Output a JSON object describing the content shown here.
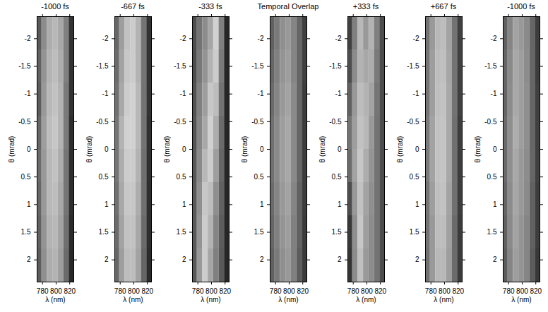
{
  "chart_data": [
    {
      "type": "heatmap",
      "title": "-1000 fs",
      "x_label": "λ (nm)",
      "y_label": "θ (mrad)",
      "xlim": [
        772,
        826
      ],
      "ylim": [
        -2.4,
        2.4
      ],
      "xticks": [
        780,
        800,
        820
      ],
      "yticks": [
        -2,
        -1.5,
        -1,
        -0.5,
        0,
        0.5,
        1,
        1.5,
        2
      ],
      "color_range": [
        0,
        1
      ],
      "x": [
        775,
        783,
        791,
        799,
        807,
        815,
        823
      ],
      "y": [
        -2.1,
        -1.5,
        -0.9,
        -0.3,
        0.3,
        0.9,
        1.5,
        2.1
      ],
      "values": [
        [
          0.35,
          0.55,
          0.68,
          0.72,
          0.66,
          0.5,
          0.2
        ],
        [
          0.38,
          0.58,
          0.7,
          0.74,
          0.68,
          0.5,
          0.2
        ],
        [
          0.36,
          0.6,
          0.72,
          0.76,
          0.7,
          0.48,
          0.2
        ],
        [
          0.4,
          0.62,
          0.74,
          0.78,
          0.7,
          0.48,
          0.18
        ],
        [
          0.42,
          0.6,
          0.72,
          0.76,
          0.68,
          0.46,
          0.18
        ],
        [
          0.4,
          0.6,
          0.72,
          0.74,
          0.66,
          0.46,
          0.18
        ],
        [
          0.38,
          0.58,
          0.7,
          0.72,
          0.64,
          0.44,
          0.17
        ],
        [
          0.36,
          0.56,
          0.68,
          0.7,
          0.62,
          0.42,
          0.16
        ]
      ]
    },
    {
      "type": "heatmap",
      "title": "-667 fs",
      "x_label": "λ (nm)",
      "y_label": "θ (mrad)",
      "xlim": [
        772,
        826
      ],
      "ylim": [
        -2.4,
        2.4
      ],
      "xticks": [
        780,
        800,
        820
      ],
      "yticks": [
        -2,
        -1.5,
        -1,
        -0.5,
        0,
        0.5,
        1,
        1.5,
        2
      ],
      "color_range": [
        0,
        1
      ],
      "x": [
        775,
        783,
        791,
        799,
        807,
        815,
        823
      ],
      "y": [
        -2.1,
        -1.5,
        -0.9,
        -0.3,
        0.3,
        0.9,
        1.5,
        2.1
      ],
      "values": [
        [
          0.4,
          0.62,
          0.76,
          0.8,
          0.7,
          0.46,
          0.2
        ],
        [
          0.42,
          0.64,
          0.78,
          0.8,
          0.7,
          0.46,
          0.2
        ],
        [
          0.44,
          0.66,
          0.8,
          0.82,
          0.72,
          0.45,
          0.2
        ],
        [
          0.46,
          0.7,
          0.82,
          0.82,
          0.72,
          0.45,
          0.19
        ],
        [
          0.46,
          0.68,
          0.8,
          0.8,
          0.7,
          0.44,
          0.19
        ],
        [
          0.44,
          0.66,
          0.78,
          0.78,
          0.68,
          0.44,
          0.18
        ],
        [
          0.42,
          0.64,
          0.76,
          0.76,
          0.66,
          0.42,
          0.18
        ],
        [
          0.4,
          0.62,
          0.74,
          0.74,
          0.64,
          0.4,
          0.17
        ]
      ]
    },
    {
      "type": "heatmap",
      "title": "-333 fs",
      "x_label": "λ (nm)",
      "y_label": "θ (mrad)",
      "xlim": [
        772,
        826
      ],
      "ylim": [
        -2.4,
        2.4
      ],
      "xticks": [
        780,
        800,
        820
      ],
      "yticks": [
        -2,
        -1.5,
        -1,
        -0.5,
        0,
        0.5,
        1,
        1.5,
        2
      ],
      "color_range": [
        0,
        1
      ],
      "x": [
        775,
        783,
        791,
        799,
        807,
        815,
        823
      ],
      "y": [
        -2.1,
        -1.5,
        -0.9,
        -0.3,
        0.3,
        0.9,
        1.5,
        2.1
      ],
      "values": [
        [
          0.3,
          0.45,
          0.55,
          0.65,
          0.82,
          0.5,
          0.15
        ],
        [
          0.3,
          0.47,
          0.58,
          0.7,
          0.8,
          0.48,
          0.15
        ],
        [
          0.32,
          0.5,
          0.62,
          0.78,
          0.74,
          0.45,
          0.15
        ],
        [
          0.33,
          0.52,
          0.66,
          0.82,
          0.68,
          0.42,
          0.15
        ],
        [
          0.34,
          0.54,
          0.72,
          0.8,
          0.62,
          0.4,
          0.15
        ],
        [
          0.35,
          0.56,
          0.78,
          0.74,
          0.56,
          0.38,
          0.15
        ],
        [
          0.35,
          0.58,
          0.8,
          0.7,
          0.52,
          0.36,
          0.15
        ],
        [
          0.35,
          0.6,
          0.8,
          0.65,
          0.5,
          0.35,
          0.15
        ]
      ]
    },
    {
      "type": "heatmap",
      "title": "Temporal Overlap",
      "x_label": "λ (nm)",
      "y_label": "θ (mrad)",
      "xlim": [
        772,
        826
      ],
      "ylim": [
        -2.4,
        2.4
      ],
      "xticks": [
        780,
        800,
        820
      ],
      "yticks": [
        -2,
        -1.5,
        -1,
        -0.5,
        0,
        0.5,
        1,
        1.5,
        2
      ],
      "color_range": [
        0,
        1
      ],
      "x": [
        775,
        783,
        791,
        799,
        807,
        815,
        823
      ],
      "y": [
        -2.1,
        -1.5,
        -0.9,
        -0.3,
        0.3,
        0.9,
        1.5,
        2.1
      ],
      "values": [
        [
          0.38,
          0.48,
          0.56,
          0.6,
          0.52,
          0.4,
          0.25
        ],
        [
          0.4,
          0.5,
          0.58,
          0.62,
          0.52,
          0.4,
          0.25
        ],
        [
          0.42,
          0.52,
          0.6,
          0.64,
          0.54,
          0.4,
          0.24
        ],
        [
          0.44,
          0.54,
          0.62,
          0.66,
          0.54,
          0.4,
          0.24
        ],
        [
          0.44,
          0.54,
          0.62,
          0.66,
          0.54,
          0.4,
          0.24
        ],
        [
          0.42,
          0.52,
          0.6,
          0.64,
          0.52,
          0.38,
          0.24
        ],
        [
          0.4,
          0.5,
          0.58,
          0.62,
          0.5,
          0.38,
          0.23
        ],
        [
          0.38,
          0.48,
          0.56,
          0.6,
          0.5,
          0.36,
          0.23
        ]
      ]
    },
    {
      "type": "heatmap",
      "title": "+333 fs",
      "x_label": "λ (nm)",
      "y_label": "θ (mrad)",
      "xlim": [
        772,
        826
      ],
      "ylim": [
        -2.4,
        2.4
      ],
      "xticks": [
        780,
        800,
        820
      ],
      "yticks": [
        -2,
        -1.5,
        -1,
        -0.5,
        0,
        0.5,
        1,
        1.5,
        2
      ],
      "color_range": [
        0,
        1
      ],
      "x": [
        775,
        783,
        791,
        799,
        807,
        815,
        823
      ],
      "y": [
        -2.1,
        -1.5,
        -0.9,
        -0.3,
        0.3,
        0.9,
        1.5,
        2.1
      ],
      "values": [
        [
          0.25,
          0.5,
          0.72,
          0.6,
          0.7,
          0.5,
          0.3
        ],
        [
          0.3,
          0.55,
          0.7,
          0.66,
          0.68,
          0.48,
          0.3
        ],
        [
          0.38,
          0.6,
          0.74,
          0.7,
          0.64,
          0.46,
          0.3
        ],
        [
          0.45,
          0.62,
          0.76,
          0.72,
          0.6,
          0.45,
          0.3
        ],
        [
          0.42,
          0.64,
          0.78,
          0.68,
          0.58,
          0.45,
          0.3
        ],
        [
          0.3,
          0.6,
          0.76,
          0.64,
          0.56,
          0.45,
          0.3
        ],
        [
          0.22,
          0.56,
          0.78,
          0.62,
          0.55,
          0.45,
          0.3
        ],
        [
          0.2,
          0.55,
          0.75,
          0.6,
          0.55,
          0.45,
          0.3
        ]
      ]
    },
    {
      "type": "heatmap",
      "title": "+667 fs",
      "x_label": "λ (nm)",
      "y_label": "θ (mrad)",
      "xlim": [
        772,
        826
      ],
      "ylim": [
        -2.4,
        2.4
      ],
      "xticks": [
        780,
        800,
        820
      ],
      "yticks": [
        -2,
        -1.5,
        -1,
        -0.5,
        0,
        0.5,
        1,
        1.5,
        2
      ],
      "color_range": [
        0,
        1
      ],
      "x": [
        775,
        783,
        791,
        799,
        807,
        815,
        823
      ],
      "y": [
        -2.1,
        -1.5,
        -0.9,
        -0.3,
        0.3,
        0.9,
        1.5,
        2.1
      ],
      "values": [
        [
          0.45,
          0.6,
          0.72,
          0.74,
          0.64,
          0.45,
          0.25
        ],
        [
          0.46,
          0.62,
          0.74,
          0.75,
          0.65,
          0.45,
          0.25
        ],
        [
          0.46,
          0.62,
          0.75,
          0.76,
          0.66,
          0.45,
          0.25
        ],
        [
          0.48,
          0.64,
          0.76,
          0.77,
          0.66,
          0.44,
          0.24
        ],
        [
          0.48,
          0.64,
          0.76,
          0.77,
          0.66,
          0.44,
          0.24
        ],
        [
          0.46,
          0.62,
          0.75,
          0.76,
          0.64,
          0.44,
          0.24
        ],
        [
          0.45,
          0.6,
          0.74,
          0.74,
          0.63,
          0.42,
          0.23
        ],
        [
          0.44,
          0.6,
          0.72,
          0.72,
          0.62,
          0.42,
          0.23
        ]
      ]
    },
    {
      "type": "heatmap",
      "title": "-1000 fs",
      "x_label": "λ (nm)",
      "y_label": "θ (mrad)",
      "xlim": [
        772,
        826
      ],
      "ylim": [
        -2.4,
        2.4
      ],
      "xticks": [
        780,
        800,
        820
      ],
      "yticks": [
        -2,
        -1.5,
        -1,
        -0.5,
        0,
        0.5,
        1,
        1.5,
        2
      ],
      "color_range": [
        0,
        1
      ],
      "x": [
        775,
        783,
        791,
        799,
        807,
        815,
        823
      ],
      "y": [
        -2.1,
        -1.5,
        -0.9,
        -0.3,
        0.3,
        0.9,
        1.5,
        2.1
      ],
      "values": [
        [
          0.38,
          0.52,
          0.64,
          0.6,
          0.54,
          0.4,
          0.24
        ],
        [
          0.4,
          0.54,
          0.66,
          0.62,
          0.55,
          0.4,
          0.24
        ],
        [
          0.4,
          0.55,
          0.66,
          0.62,
          0.56,
          0.4,
          0.25
        ],
        [
          0.42,
          0.56,
          0.68,
          0.62,
          0.56,
          0.4,
          0.25
        ],
        [
          0.42,
          0.56,
          0.66,
          0.6,
          0.55,
          0.4,
          0.25
        ],
        [
          0.4,
          0.55,
          0.65,
          0.6,
          0.54,
          0.38,
          0.24
        ],
        [
          0.38,
          0.54,
          0.64,
          0.58,
          0.52,
          0.38,
          0.24
        ],
        [
          0.36,
          0.52,
          0.62,
          0.58,
          0.52,
          0.36,
          0.22
        ]
      ]
    }
  ]
}
